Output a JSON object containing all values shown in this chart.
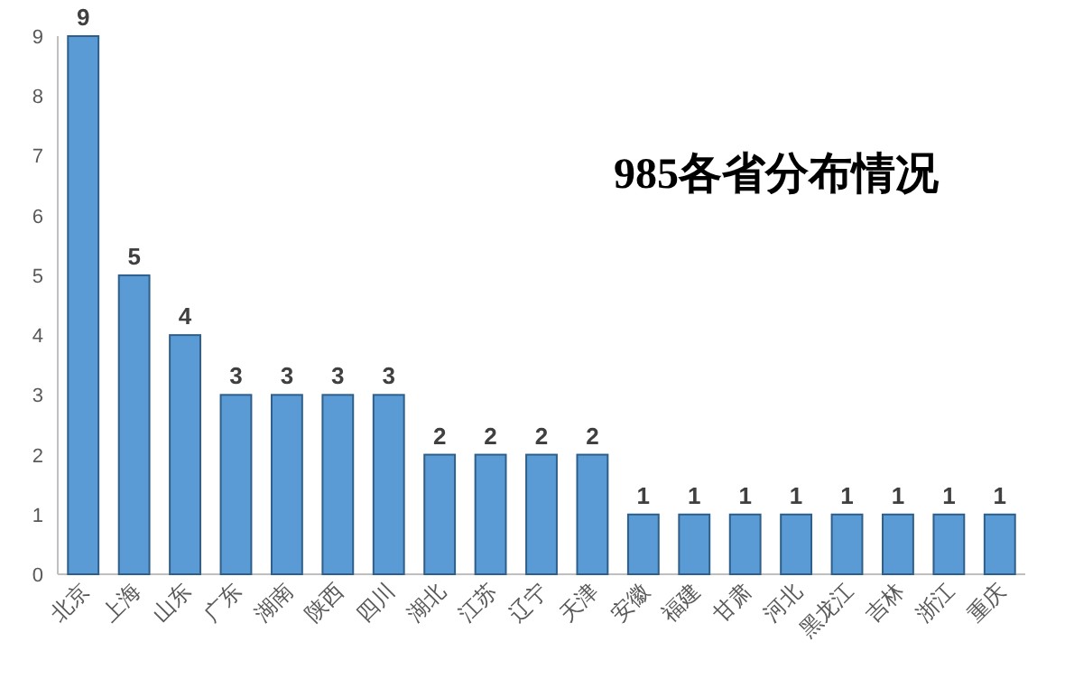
{
  "chart_data": {
    "type": "bar",
    "title": "985各省分布情况",
    "categories": [
      "北京",
      "上海",
      "山东",
      "广东",
      "湖南",
      "陕西",
      "四川",
      "湖北",
      "江苏",
      "辽宁",
      "天津",
      "安徽",
      "福建",
      "甘肃",
      "河北",
      "黑龙江",
      "吉林",
      "浙江",
      "重庆"
    ],
    "values": [
      9,
      5,
      4,
      3,
      3,
      3,
      3,
      2,
      2,
      2,
      2,
      1,
      1,
      1,
      1,
      1,
      1,
      1,
      1
    ],
    "color": "#5b9bd5",
    "ylim": [
      0,
      9
    ],
    "yticks": [
      0,
      1,
      2,
      3,
      4,
      5,
      6,
      7,
      8,
      9
    ],
    "grid": false,
    "data_labels": true
  }
}
